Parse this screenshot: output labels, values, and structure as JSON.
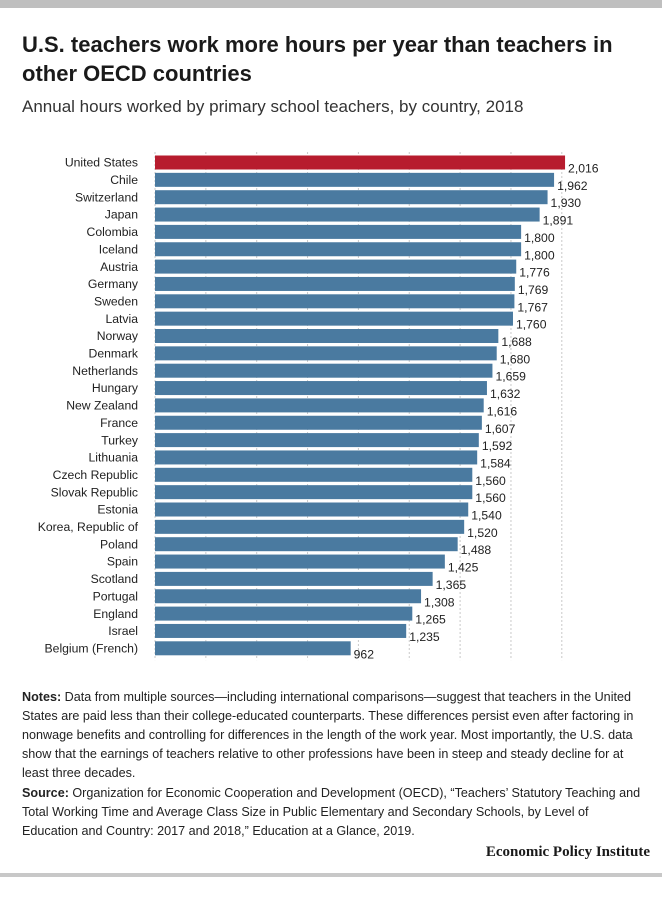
{
  "header": {
    "title": "U.S. teachers work more hours per year than teachers in other OECD countries",
    "subtitle": "Annual hours worked by primary school teachers, by country, 2018"
  },
  "colors": {
    "highlight": "#b71c2e",
    "bar": "#4a7aa0",
    "grid": "#c9c9c9"
  },
  "chart_data": {
    "type": "bar",
    "orientation": "horizontal",
    "xlim": [
      0,
      2100
    ],
    "grid": true,
    "categories": [
      "United States",
      "Chile",
      "Switzerland",
      "Japan",
      "Colombia",
      "Iceland",
      "Austria",
      "Germany",
      "Sweden",
      "Latvia",
      "Norway",
      "Denmark",
      "Netherlands",
      "Hungary",
      "New Zealand",
      "France",
      "Turkey",
      "Lithuania",
      "Czech Republic",
      "Slovak Republic",
      "Estonia",
      "Korea, Republic of",
      "Poland",
      "Spain",
      "Scotland",
      "Portugal",
      "England",
      "Israel",
      "Belgium (French)"
    ],
    "values": [
      2016,
      1962,
      1930,
      1891,
      1800,
      1800,
      1776,
      1769,
      1767,
      1760,
      1688,
      1680,
      1659,
      1632,
      1616,
      1607,
      1592,
      1584,
      1560,
      1560,
      1540,
      1520,
      1488,
      1425,
      1365,
      1308,
      1265,
      1235,
      962
    ],
    "value_labels": [
      "2,016",
      "1,962",
      "1,930",
      "1,891",
      "1,800",
      "1,800",
      "1,776",
      "1,769",
      "1,767",
      "1,760",
      "1,688",
      "1,680",
      "1,659",
      "1,632",
      "1,616",
      "1,607",
      "1,592",
      "1,584",
      "1,560",
      "1,560",
      "1,540",
      "1,520",
      "1,488",
      "1,425",
      "1,365",
      "1,308",
      "1,265",
      "1,235",
      "962"
    ],
    "highlight_category": "United States"
  },
  "notes": {
    "label": "Notes:",
    "text": " Data from multiple sources—including international comparisons—suggest that teachers in the United States are paid less than their college-educated counterparts. These differences persist even after factoring in nonwage benefits and controlling for differences in the length of the work year. Most importantly, the U.S. data show that the earnings of teachers relative to other professions have been in steep and steady decline for at least three decades."
  },
  "source": {
    "label": "Source:",
    "text": " Organization for Economic Cooperation and Development (OECD), “Teachers’ Statutory Teaching and Total Working Time and Average Class Size in Public Elementary and Secondary Schools, by Level of Education and Country: 2017 and 2018,” Education at a Glance, 2019."
  },
  "footer": {
    "brand": "Economic Policy Institute"
  }
}
